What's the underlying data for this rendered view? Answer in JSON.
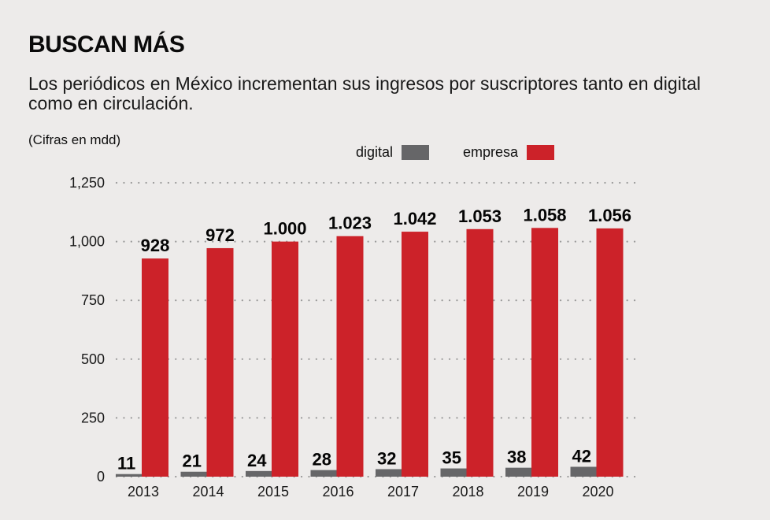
{
  "header": {
    "title": "BUSCAN MÁS",
    "subtitle": "Los periódicos en México incrementan sus ingresos por suscriptores tanto en digital como en circulación.",
    "units_note": "(Cifras en mdd)"
  },
  "colors": {
    "digital": "#666668",
    "empresa": "#cc2229",
    "background": "#edebea",
    "grid": "#9a9a9a"
  },
  "legend": [
    {
      "label": "digital",
      "color": "#666668"
    },
    {
      "label": "empresa",
      "color": "#cc2229"
    }
  ],
  "chart_data": {
    "type": "bar",
    "title": "BUSCAN MÁS",
    "subtitle": "Los periódicos en México incrementan sus ingresos por suscriptores tanto en digital como en circulación.",
    "xlabel": "",
    "ylabel": "(Cifras en mdd)",
    "categories": [
      "2013",
      "2014",
      "2015",
      "2016",
      "2017",
      "2018",
      "2019",
      "2020"
    ],
    "series": [
      {
        "name": "digital",
        "color": "#666668",
        "values": [
          11,
          21,
          24,
          28,
          32,
          35,
          38,
          42
        ],
        "labels": [
          "11",
          "21",
          "24",
          "28",
          "32",
          "35",
          "38",
          "42"
        ]
      },
      {
        "name": "empresa",
        "color": "#cc2229",
        "values": [
          928,
          972,
          1000,
          1023,
          1042,
          1053,
          1058,
          1056
        ],
        "labels": [
          "928",
          "972",
          "1.000",
          "1.023",
          "1.042",
          "1.053",
          "1.058",
          "1.056"
        ]
      }
    ],
    "ylim": [
      0,
      1250
    ],
    "yticks": [
      0,
      250,
      500,
      750,
      1000,
      1250
    ],
    "ytick_labels": [
      "0",
      "250",
      "500",
      "750",
      "1,000",
      "1,250"
    ],
    "grid": true,
    "grid_style": "dotted",
    "legend_position": "top-center"
  }
}
